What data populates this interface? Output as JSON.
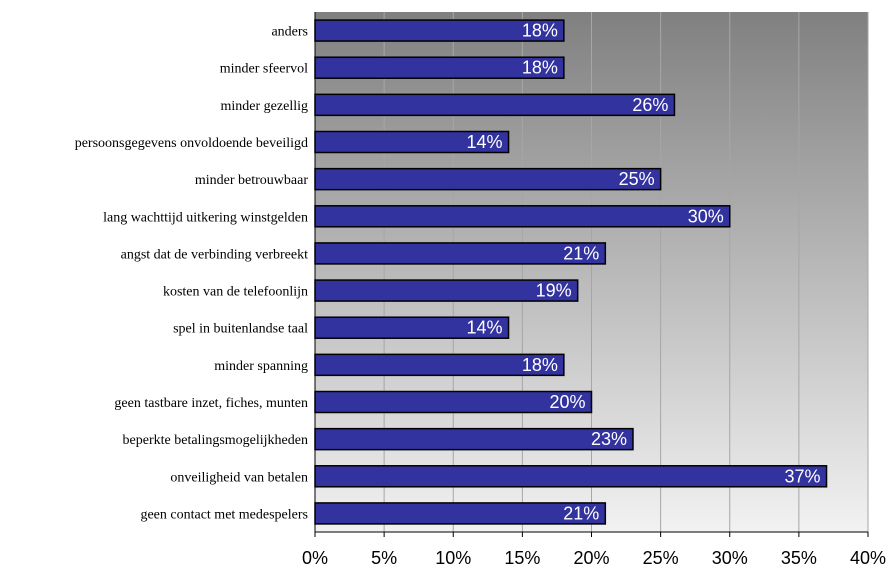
{
  "chart_data": {
    "type": "bar",
    "orientation": "horizontal",
    "categories": [
      "anders",
      "minder sfeervol",
      "minder gezellig",
      "persoonsgegevens onvoldoende beveiligd",
      "minder betrouwbaar",
      "lang wachttijd uitkering winstgelden",
      "angst dat de verbinding verbreekt",
      "kosten van de telefoonlijn",
      "spel in buitenlandse taal",
      "minder spanning",
      "geen tastbare inzet, fiches, munten",
      "beperkte betalingsmogelijkheden",
      "onveiligheid van betalen",
      "geen contact met medespelers"
    ],
    "values": [
      18,
      18,
      26,
      14,
      25,
      30,
      21,
      19,
      14,
      18,
      20,
      23,
      37,
      21
    ],
    "data_labels": [
      "18%",
      "18%",
      "26%",
      "14%",
      "25%",
      "30%",
      "21%",
      "19%",
      "14%",
      "18%",
      "20%",
      "23%",
      "37%",
      "21%"
    ],
    "xlim": [
      0,
      40
    ],
    "xticks": [
      0,
      5,
      10,
      15,
      20,
      25,
      30,
      35,
      40
    ],
    "xtick_labels": [
      "0%",
      "5%",
      "10%",
      "15%",
      "20%",
      "25%",
      "30%",
      "35%",
      "40%"
    ],
    "title": "",
    "xlabel": "",
    "ylabel": "",
    "grid": "vertical",
    "colors": {
      "bar_fill": "#3333a0",
      "bar_stroke": "#000000",
      "plot_gradient_top": "#808080",
      "plot_gradient_bottom": "#f2f2f2",
      "gridline": "#a6a6a6",
      "data_label": "#ffffff"
    }
  }
}
